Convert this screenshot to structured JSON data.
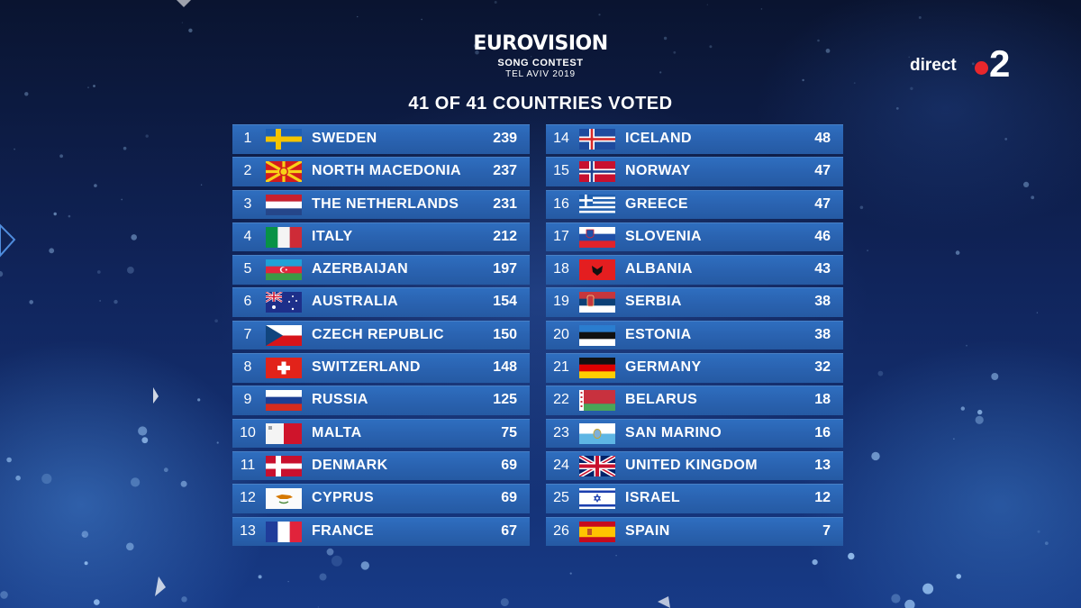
{
  "logo": {
    "wordmark": "EUROVISION",
    "line1": "SONG CONTEST",
    "line2": "TEL AVIV 2019"
  },
  "heading": "41 OF 41 COUNTRIES VOTED",
  "broadcaster": {
    "text": "direct",
    "channel": "2"
  },
  "colors": {
    "row": "#2a63b1",
    "background": "#10245a",
    "live_dot": "#e8272c"
  },
  "scoreboard": {
    "left": [
      {
        "rank": "1",
        "country": "SWEDEN",
        "points": "239",
        "flag": "sweden-flag-icon"
      },
      {
        "rank": "2",
        "country": "NORTH MACEDONIA",
        "points": "237",
        "flag": "north-macedonia-flag-icon"
      },
      {
        "rank": "3",
        "country": "THE NETHERLANDS",
        "points": "231",
        "flag": "netherlands-flag-icon"
      },
      {
        "rank": "4",
        "country": "ITALY",
        "points": "212",
        "flag": "italy-flag-icon"
      },
      {
        "rank": "5",
        "country": "AZERBAIJAN",
        "points": "197",
        "flag": "azerbaijan-flag-icon"
      },
      {
        "rank": "6",
        "country": "AUSTRALIA",
        "points": "154",
        "flag": "australia-flag-icon"
      },
      {
        "rank": "7",
        "country": "CZECH REPUBLIC",
        "points": "150",
        "flag": "czech-republic-flag-icon"
      },
      {
        "rank": "8",
        "country": "SWITZERLAND",
        "points": "148",
        "flag": "switzerland-flag-icon"
      },
      {
        "rank": "9",
        "country": "RUSSIA",
        "points": "125",
        "flag": "russia-flag-icon"
      },
      {
        "rank": "10",
        "country": "MALTA",
        "points": "75",
        "flag": "malta-flag-icon"
      },
      {
        "rank": "11",
        "country": "DENMARK",
        "points": "69",
        "flag": "denmark-flag-icon"
      },
      {
        "rank": "12",
        "country": "CYPRUS",
        "points": "69",
        "flag": "cyprus-flag-icon"
      },
      {
        "rank": "13",
        "country": "FRANCE",
        "points": "67",
        "flag": "france-flag-icon"
      }
    ],
    "right": [
      {
        "rank": "14",
        "country": "ICELAND",
        "points": "48",
        "flag": "iceland-flag-icon"
      },
      {
        "rank": "15",
        "country": "NORWAY",
        "points": "47",
        "flag": "norway-flag-icon"
      },
      {
        "rank": "16",
        "country": "GREECE",
        "points": "47",
        "flag": "greece-flag-icon"
      },
      {
        "rank": "17",
        "country": "SLOVENIA",
        "points": "46",
        "flag": "slovenia-flag-icon"
      },
      {
        "rank": "18",
        "country": "ALBANIA",
        "points": "43",
        "flag": "albania-flag-icon"
      },
      {
        "rank": "19",
        "country": "SERBIA",
        "points": "38",
        "flag": "serbia-flag-icon"
      },
      {
        "rank": "20",
        "country": "ESTONIA",
        "points": "38",
        "flag": "estonia-flag-icon"
      },
      {
        "rank": "21",
        "country": "GERMANY",
        "points": "32",
        "flag": "germany-flag-icon"
      },
      {
        "rank": "22",
        "country": "BELARUS",
        "points": "18",
        "flag": "belarus-flag-icon"
      },
      {
        "rank": "23",
        "country": "SAN MARINO",
        "points": "16",
        "flag": "san-marino-flag-icon"
      },
      {
        "rank": "24",
        "country": "UNITED KINGDOM",
        "points": "13",
        "flag": "united-kingdom-flag-icon"
      },
      {
        "rank": "25",
        "country": "ISRAEL",
        "points": "12",
        "flag": "israel-flag-icon"
      },
      {
        "rank": "26",
        "country": "SPAIN",
        "points": "7",
        "flag": "spain-flag-icon"
      }
    ]
  }
}
